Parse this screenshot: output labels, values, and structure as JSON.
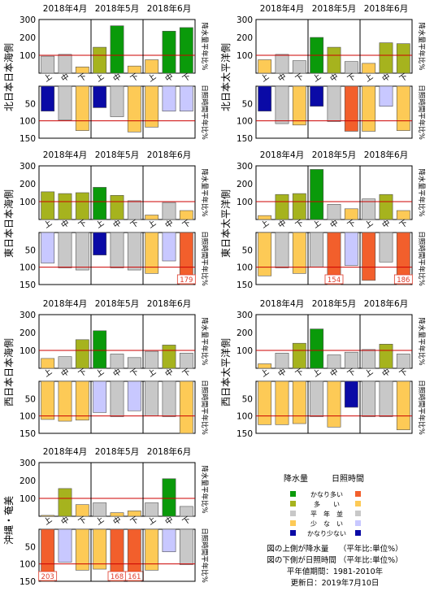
{
  "months": [
    "2018年4月",
    "2018年5月",
    "2018年6月"
  ],
  "dekads": [
    "上",
    "中",
    "下"
  ],
  "precip_axis_label": "降水量平年比%",
  "sun_axis_label": "日照時間平年比%",
  "precip_ticks": [
    "300",
    "200",
    "100"
  ],
  "sun_ticks": [
    "50",
    "100",
    "150"
  ],
  "colors": {
    "precip": {
      "very_much": "#0a9a0a",
      "much": "#a6b31e",
      "normal": "#c8c8c8",
      "little": "#fdca56",
      "very_little": "#0a0aa6"
    },
    "sun": {
      "very_much": "#f25f2c",
      "much": "#fdca56",
      "normal": "#c8c8c8",
      "little": "#c8c8ff",
      "very_little": "#0a0aa6"
    },
    "reference_line": "#cc0000"
  },
  "legend": {
    "precip_header": "降水量",
    "sun_header": "日照時間",
    "categories": [
      "かなり多い",
      "多　　い",
      "平　年　並",
      "少　な　い",
      "かなり少ない"
    ]
  },
  "notes": [
    "図の上側が降水量　 （平年比:単位%）",
    "図の下側が日照時間 （平年比:単位%）",
    "平年値期間：1981-2010年",
    "更新日：2019年7月10日"
  ],
  "chart_data": [
    {
      "type": "bar",
      "region": "北日本日本海側",
      "categories": [
        "4月上",
        "4月中",
        "4月下",
        "5月上",
        "5月中",
        "5月下",
        "6月上",
        "6月中",
        "6月下"
      ],
      "precip_ylim": [
        0,
        300
      ],
      "sun_ylim": [
        150,
        0
      ],
      "precipitation": {
        "values": [
          95,
          105,
          35,
          145,
          265,
          40,
          75,
          235,
          255
        ],
        "classes": [
          "normal",
          "normal",
          "little",
          "much",
          "very_much",
          "little",
          "little",
          "very_much",
          "very_much"
        ]
      },
      "sunshine": {
        "values": [
          72,
          98,
          128,
          62,
          88,
          132,
          118,
          72,
          72
        ],
        "classes": [
          "very_little",
          "normal",
          "much",
          "very_little",
          "normal",
          "much",
          "much",
          "little",
          "little"
        ]
      },
      "sun_overflow_labels": [
        null,
        null,
        null,
        null,
        null,
        null,
        null,
        null,
        null
      ]
    },
    {
      "type": "bar",
      "region": "北日本太平洋側",
      "categories": [
        "4月上",
        "4月中",
        "4月下",
        "5月上",
        "5月中",
        "5月下",
        "6月上",
        "6月中",
        "6月下"
      ],
      "precip_ylim": [
        0,
        300
      ],
      "sun_ylim": [
        150,
        0
      ],
      "precipitation": {
        "values": [
          75,
          105,
          70,
          200,
          145,
          65,
          55,
          170,
          165
        ],
        "classes": [
          "little",
          "normal",
          "normal",
          "very_much",
          "much",
          "normal",
          "little",
          "much",
          "much"
        ]
      },
      "sunshine": {
        "values": [
          72,
          108,
          112,
          58,
          102,
          130,
          130,
          58,
          128
        ],
        "classes": [
          "very_little",
          "normal",
          "much",
          "very_little",
          "normal",
          "very_much",
          "much",
          "little",
          "much"
        ]
      },
      "sun_overflow_labels": [
        null,
        null,
        null,
        null,
        null,
        null,
        null,
        null,
        null
      ]
    },
    {
      "type": "bar",
      "region": "東日本日本海側",
      "categories": [
        "4月上",
        "4月中",
        "4月下",
        "5月上",
        "5月中",
        "5月下",
        "6月上",
        "6月中",
        "6月下"
      ],
      "precip_ylim": [
        0,
        300
      ],
      "sun_ylim": [
        150,
        0
      ],
      "precipitation": {
        "values": [
          155,
          145,
          150,
          180,
          135,
          105,
          25,
          95,
          50
        ],
        "classes": [
          "much",
          "much",
          "much",
          "very_much",
          "much",
          "normal",
          "little",
          "normal",
          "little"
        ]
      },
      "sunshine": {
        "values": [
          88,
          102,
          108,
          65,
          102,
          108,
          118,
          82,
          179
        ],
        "classes": [
          "little",
          "normal",
          "normal",
          "very_little",
          "normal",
          "normal",
          "much",
          "little",
          "very_much"
        ]
      },
      "sun_overflow_labels": [
        null,
        null,
        null,
        null,
        null,
        null,
        null,
        null,
        "179"
      ]
    },
    {
      "type": "bar",
      "region": "東日本太平洋側",
      "categories": [
        "4月上",
        "4月中",
        "4月下",
        "5月上",
        "5月中",
        "5月下",
        "6月上",
        "6月中",
        "6月下"
      ],
      "precip_ylim": [
        0,
        300
      ],
      "sun_ylim": [
        150,
        0
      ],
      "precipitation": {
        "values": [
          22,
          140,
          145,
          280,
          85,
          60,
          115,
          140,
          50
        ],
        "classes": [
          "little",
          "much",
          "much",
          "very_much",
          "normal",
          "little",
          "normal",
          "much",
          "little"
        ]
      },
      "sunshine": {
        "values": [
          125,
          102,
          118,
          100,
          154,
          95,
          138,
          85,
          186
        ],
        "classes": [
          "much",
          "normal",
          "much",
          "normal",
          "very_much",
          "little",
          "very_much",
          "normal",
          "very_much"
        ]
      },
      "sun_overflow_labels": [
        null,
        null,
        null,
        null,
        "154",
        null,
        null,
        null,
        "186"
      ]
    },
    {
      "type": "bar",
      "region": "西日本日本海側",
      "categories": [
        "4月上",
        "4月中",
        "4月下",
        "5月上",
        "5月中",
        "5月下",
        "6月上",
        "6月中",
        "6月下"
      ],
      "precip_ylim": [
        0,
        300
      ],
      "sun_ylim": [
        150,
        0
      ],
      "precipitation": {
        "values": [
          55,
          65,
          160,
          210,
          80,
          60,
          95,
          130,
          85
        ],
        "classes": [
          "little",
          "normal",
          "much",
          "very_much",
          "normal",
          "normal",
          "normal",
          "much",
          "normal"
        ]
      },
      "sunshine": {
        "values": [
          110,
          115,
          112,
          90,
          102,
          85,
          100,
          102,
          152
        ],
        "classes": [
          "much",
          "much",
          "much",
          "little",
          "normal",
          "little",
          "normal",
          "normal",
          "much"
        ]
      },
      "sun_overflow_labels": [
        null,
        null,
        null,
        null,
        null,
        null,
        null,
        null,
        null
      ]
    },
    {
      "type": "bar",
      "region": "西日本太平洋側",
      "categories": [
        "4月上",
        "4月中",
        "4月下",
        "5月上",
        "5月中",
        "5月下",
        "6月上",
        "6月中",
        "6月下"
      ],
      "precip_ylim": [
        0,
        300
      ],
      "sun_ylim": [
        150,
        0
      ],
      "precipitation": {
        "values": [
          25,
          85,
          140,
          220,
          75,
          90,
          105,
          135,
          80
        ],
        "classes": [
          "little",
          "normal",
          "much",
          "very_much",
          "normal",
          "normal",
          "normal",
          "much",
          "normal"
        ]
      },
      "sunshine": {
        "values": [
          125,
          125,
          122,
          102,
          132,
          75,
          102,
          102,
          140
        ],
        "classes": [
          "much",
          "much",
          "much",
          "normal",
          "much",
          "very_little",
          "normal",
          "normal",
          "much"
        ]
      },
      "sun_overflow_labels": [
        null,
        null,
        null,
        null,
        null,
        null,
        null,
        null,
        null
      ]
    },
    {
      "type": "bar",
      "region": "沖縄・奄美",
      "categories": [
        "4月上",
        "4月中",
        "4月下",
        "5月上",
        "5月中",
        "5月下",
        "6月上",
        "6月中",
        "6月下"
      ],
      "precip_ylim": [
        0,
        300
      ],
      "sun_ylim": [
        150,
        0
      ],
      "precipitation": {
        "values": [
          5,
          155,
          65,
          75,
          20,
          30,
          75,
          210,
          55
        ],
        "classes": [
          "little",
          "much",
          "little",
          "normal",
          "little",
          "little",
          "normal",
          "very_much",
          "normal"
        ]
      },
      "sunshine": {
        "values": [
          203,
          95,
          118,
          115,
          168,
          161,
          118,
          65,
          102
        ],
        "classes": [
          "very_much",
          "little",
          "much",
          "much",
          "very_much",
          "very_much",
          "much",
          "little",
          "normal"
        ]
      },
      "sun_overflow_labels": [
        "203",
        null,
        null,
        null,
        "168",
        "161",
        null,
        null,
        null
      ]
    }
  ]
}
